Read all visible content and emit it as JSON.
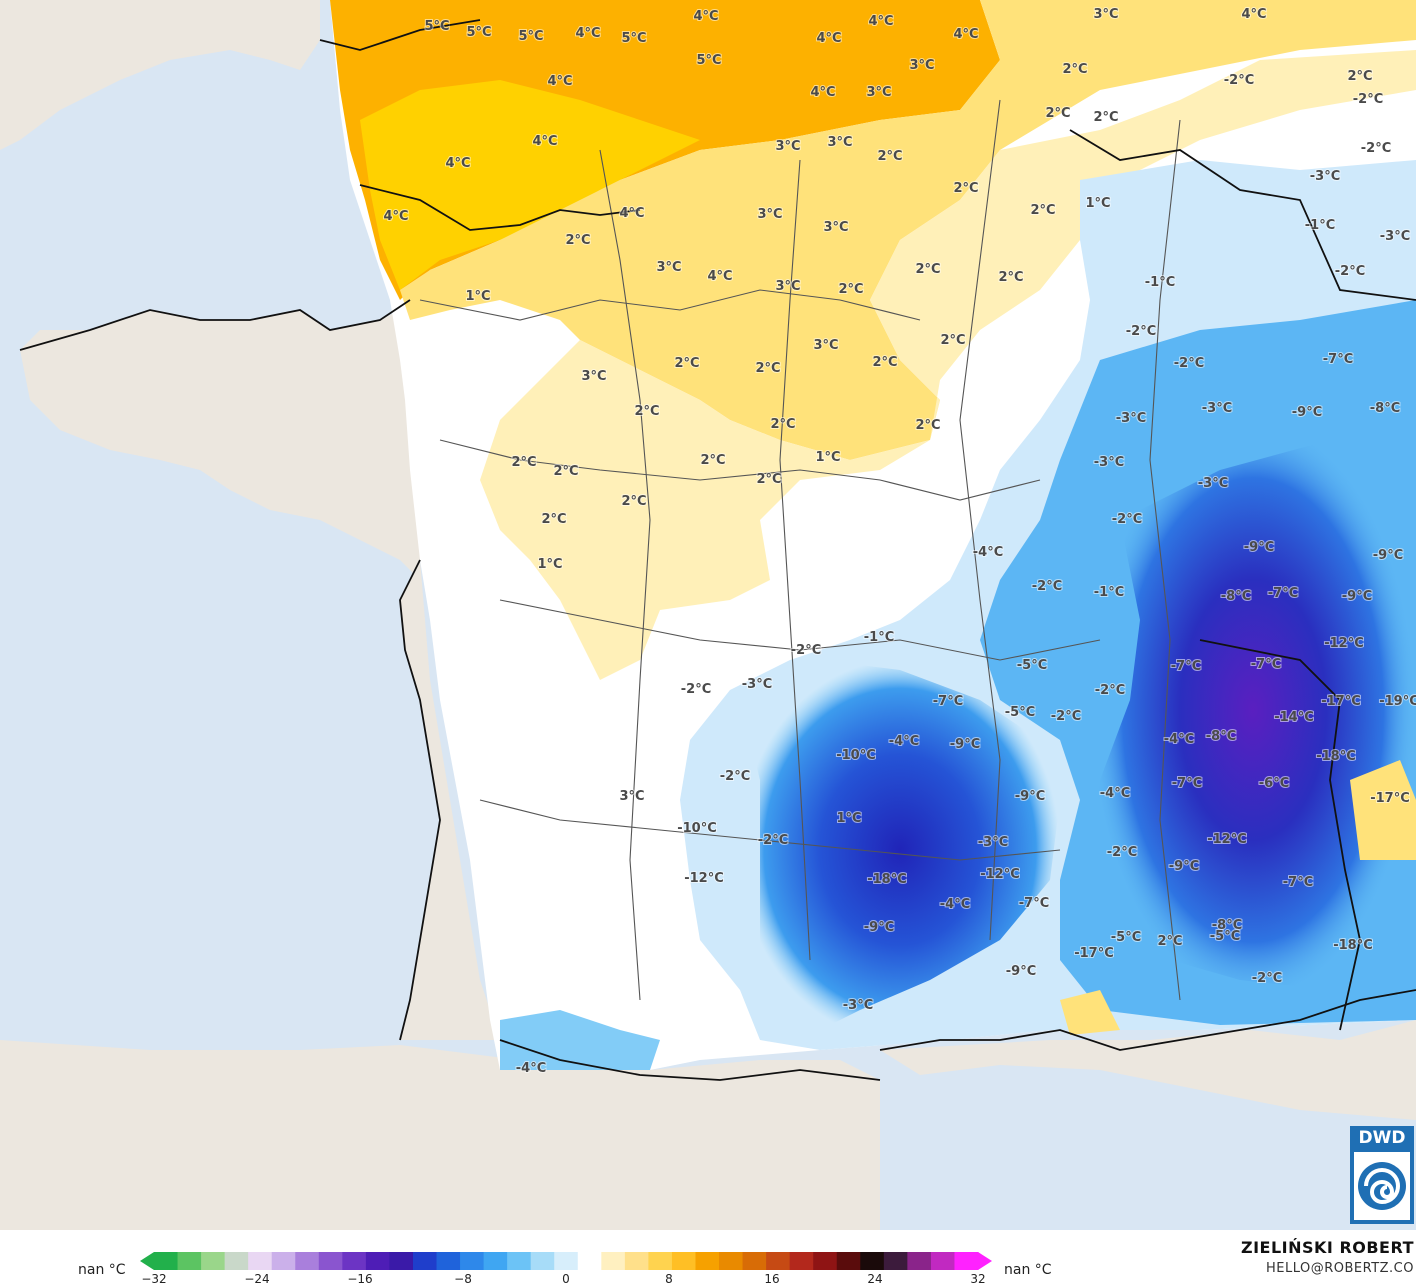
{
  "map": {
    "labels": [
      {
        "t": "5°C"
      },
      {
        "t": "5°C"
      },
      {
        "t": "5°C"
      },
      {
        "t": "4°C"
      },
      {
        "t": "5°C"
      },
      {
        "t": "4°C"
      },
      {
        "t": "5°C"
      },
      {
        "t": "4°C"
      },
      {
        "t": "4°C"
      },
      {
        "t": "4°C"
      },
      {
        "t": "4°C"
      },
      {
        "t": "4°C"
      },
      {
        "t": "3°C"
      },
      {
        "t": "4°C"
      },
      {
        "t": "4°C"
      },
      {
        "t": "4°C"
      },
      {
        "t": "3°C"
      },
      {
        "t": "2°C"
      },
      {
        "t": "-2°C"
      },
      {
        "t": "2°C"
      },
      {
        "t": "2°C"
      },
      {
        "t": "-2°C"
      },
      {
        "t": "2°C"
      },
      {
        "t": "-2°C"
      },
      {
        "t": "4°C"
      },
      {
        "t": "3°C"
      },
      {
        "t": "3°C"
      },
      {
        "t": "3°C"
      },
      {
        "t": "2°C"
      },
      {
        "t": "4°C"
      },
      {
        "t": "2°C"
      },
      {
        "t": "1°C"
      },
      {
        "t": "-3°C"
      },
      {
        "t": "3°C"
      },
      {
        "t": "3°C"
      },
      {
        "t": "-1°C"
      },
      {
        "t": "-3°C"
      },
      {
        "t": "2°C"
      },
      {
        "t": "3°C"
      },
      {
        "t": "4°C"
      },
      {
        "t": "2°C"
      },
      {
        "t": "2°C"
      },
      {
        "t": "-2°C"
      },
      {
        "t": "1°C"
      },
      {
        "t": "3°C"
      },
      {
        "t": "2°C"
      },
      {
        "t": "-1°C"
      },
      {
        "t": "2°C"
      },
      {
        "t": "3°C"
      },
      {
        "t": "2°C"
      },
      {
        "t": "-2°C"
      },
      {
        "t": "3°C"
      },
      {
        "t": "2°C"
      },
      {
        "t": "2°C"
      },
      {
        "t": "2°C"
      },
      {
        "t": "-2°C"
      },
      {
        "t": "-7°C"
      },
      {
        "t": "-9°C"
      },
      {
        "t": "-8°C"
      },
      {
        "t": "2°C"
      },
      {
        "t": "-3°C"
      },
      {
        "t": "-3°C"
      },
      {
        "t": "2°C"
      },
      {
        "t": "2°C"
      },
      {
        "t": "1°C"
      },
      {
        "t": "2°C"
      },
      {
        "t": "2°C"
      },
      {
        "t": "-3°C"
      },
      {
        "t": "-3°C"
      },
      {
        "t": "2°C"
      },
      {
        "t": "2°C"
      },
      {
        "t": "2°C"
      },
      {
        "t": "-4°C"
      },
      {
        "t": "-2°C"
      },
      {
        "t": "1°C"
      },
      {
        "t": "-9°C"
      },
      {
        "t": "-9°C"
      },
      {
        "t": "-2°C"
      },
      {
        "t": "-1°C"
      },
      {
        "t": "-8°C"
      },
      {
        "t": "-7°C"
      },
      {
        "t": "-9°C"
      },
      {
        "t": "2°C"
      },
      {
        "t": "-2°C"
      },
      {
        "t": "-1°C"
      },
      {
        "t": "-12°C"
      },
      {
        "t": "-7°C"
      },
      {
        "t": "-7°C"
      },
      {
        "t": "-5°C"
      },
      {
        "t": "-2°C"
      },
      {
        "t": "-3°C"
      },
      {
        "t": "-7°C"
      },
      {
        "t": "-2°C"
      },
      {
        "t": "-17°C"
      },
      {
        "t": "-19°C"
      },
      {
        "t": "-5°C"
      },
      {
        "t": "-2°C"
      },
      {
        "t": "-14°C"
      },
      {
        "t": "-4°C"
      },
      {
        "t": "-9°C"
      },
      {
        "t": "-4°C"
      },
      {
        "t": "-8°C"
      },
      {
        "t": "-18°C"
      },
      {
        "t": "-10°C"
      },
      {
        "t": "-2°C"
      },
      {
        "t": "-7°C"
      },
      {
        "t": "-9°C"
      },
      {
        "t": "-4°C"
      },
      {
        "t": "-6°C"
      },
      {
        "t": "-17°C"
      },
      {
        "t": "3°C"
      },
      {
        "t": "1°C"
      },
      {
        "t": "-10°C"
      },
      {
        "t": "-2°C"
      },
      {
        "t": "-3°C"
      },
      {
        "t": "-12°C"
      },
      {
        "t": "-18°C"
      },
      {
        "t": "-9°C"
      },
      {
        "t": "-7°C"
      },
      {
        "t": "-12°C"
      },
      {
        "t": "-18°C"
      },
      {
        "t": "-2°C"
      },
      {
        "t": "-12°C"
      },
      {
        "t": "-4°C"
      },
      {
        "t": "-7°C"
      },
      {
        "t": "-9°C"
      },
      {
        "t": "-8°C"
      },
      {
        "t": "-5°C"
      },
      {
        "t": "2°C"
      },
      {
        "t": "-17°C"
      },
      {
        "t": "-2°C"
      },
      {
        "t": "-9°C"
      },
      {
        "t": "-5°C"
      },
      {
        "t": "-3°C"
      },
      {
        "t": "-4°C"
      }
    ]
  },
  "legend": {
    "nan_left": "nan °C",
    "nan_right": "nan °C",
    "ticks": [
      "−32",
      "−24",
      "−16",
      "−8",
      "0",
      "8",
      "16",
      "24",
      "32"
    ],
    "colors": [
      "#22b04b",
      "#5cc462",
      "#9ad68a",
      "#c9d8c9",
      "#e9d7f3",
      "#cbb0ea",
      "#a97fdc",
      "#8a55cf",
      "#6c34c4",
      "#4e1db6",
      "#3a1aa8",
      "#1f3ecb",
      "#1f63db",
      "#2e88ea",
      "#3fa6f2",
      "#6cc3f6",
      "#a7dcf8",
      "#d7eefb",
      "#ffffff",
      "#fff0c0",
      "#ffe08a",
      "#ffd34f",
      "#ffbf25",
      "#f6a100",
      "#e98a00",
      "#d86c06",
      "#c64a14",
      "#b3281c",
      "#8f1414",
      "#5a0c0c",
      "#1a0a0a",
      "#3c1b3c",
      "#8a248a",
      "#c129c1",
      "#ff22ff"
    ]
  },
  "author": {
    "name": "ZIELIŃSKI ROBERT",
    "email": "HELLO@ROBERTZ.CO"
  },
  "logo": {
    "text": "DWD"
  }
}
